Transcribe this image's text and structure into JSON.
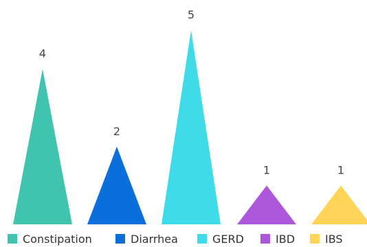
{
  "chart_data": {
    "type": "bar",
    "mark_shape": "triangle",
    "categories": [
      "Constipation",
      "Diarrhea",
      "GERD",
      "IBD",
      "IBS"
    ],
    "values": [
      4,
      2,
      5,
      1,
      1
    ],
    "colors": [
      "#40C3AF",
      "#0A6FDA",
      "#40DBE9",
      "#AD57DB",
      "#FFD458"
    ],
    "ylim": [
      0,
      5
    ],
    "grid": false,
    "legend_position": "bottom",
    "show_data_labels": true,
    "title": "",
    "xlabel": "",
    "ylabel": ""
  }
}
